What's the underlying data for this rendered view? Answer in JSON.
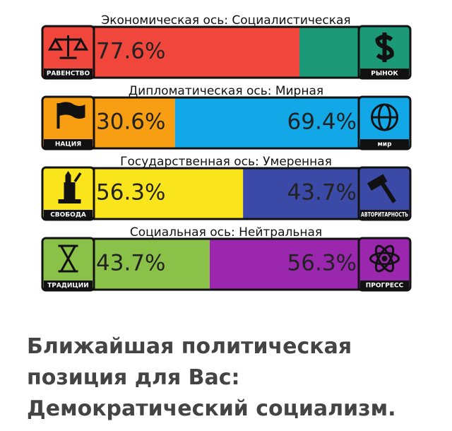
{
  "axes": [
    {
      "title": "Экономическая ось: Социалистическая",
      "left": {
        "label": "РАВЕНСТВО",
        "value": 77.6,
        "value_label": "77.6%",
        "color": "#f0463c"
      },
      "right": {
        "label": "РЫНОК",
        "value": 22.4,
        "color": "#1c9a78"
      }
    },
    {
      "title": "Дипломатическая ось: Мирная",
      "left": {
        "label": "НАЦИЯ",
        "value": 30.6,
        "value_label": "30.6%",
        "color": "#f79e12"
      },
      "right": {
        "label": "мир",
        "value": 69.4,
        "value_label": "69.4%",
        "color": "#12a8e8"
      }
    },
    {
      "title": "Государственная ось: Умеренная",
      "left": {
        "label": "СВОБОДА",
        "value": 56.3,
        "value_label": "56.3%",
        "color": "#fae51d"
      },
      "right": {
        "label": "АВТОРИТАРНОСТЬ",
        "value": 43.7,
        "value_label": "43.7%",
        "color": "#3a4aa6"
      }
    },
    {
      "title": "Социальная ось: Нейтральная",
      "left": {
        "label": "ТРАДИЦИИ",
        "value": 43.7,
        "value_label": "43.7%",
        "color": "#8ac148"
      },
      "right": {
        "label": "ПРОГРЕСС",
        "value": 56.3,
        "value_label": "56.3%",
        "color": "#9a27ae"
      }
    }
  ],
  "result": {
    "lines": [
      "Ближайшая политическая",
      "позиция для Вас:",
      "Демократический социализм."
    ]
  }
}
